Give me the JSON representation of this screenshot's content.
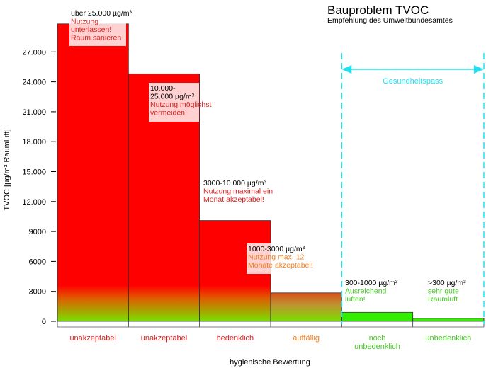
{
  "chart_data": {
    "type": "bar",
    "title": "Bauproblem TVOC",
    "subtitle": "Empfehlung des Umweltbundesamtes",
    "ylabel": "TVOC [µg/m³ Raumluft]",
    "xlabel": "hygienische Bewertung",
    "ylim": [
      0,
      30000
    ],
    "yticks": [
      {
        "value": 0,
        "label": "0"
      },
      {
        "value": 3000,
        "label": "3000"
      },
      {
        "value": 6000,
        "label": "6000"
      },
      {
        "value": 9000,
        "label": "9000"
      },
      {
        "value": 12000,
        "label": "12.000"
      },
      {
        "value": 15000,
        "label": "15.000"
      },
      {
        "value": 18000,
        "label": "18.000"
      },
      {
        "value": 21000,
        "label": "21.000"
      },
      {
        "value": 24000,
        "label": "24.000"
      },
      {
        "value": 27000,
        "label": "27.000"
      }
    ],
    "bars": [
      {
        "category": "unakzeptabel",
        "value": 29800,
        "range_label": "über 25.000 µg/m³",
        "note": [
          "Nutzung",
          "unterlassen!",
          "Raum sanieren"
        ],
        "color": "#ff0000",
        "label_color": "#e02020"
      },
      {
        "category": "unakzeptabel",
        "value": 24800,
        "range_label": [
          "10.000-",
          "25.000 µg/m³"
        ],
        "note": [
          "Nutzung möglichst",
          "vermeiden!"
        ],
        "color": "#ff0000",
        "label_color": "#e02020"
      },
      {
        "category": "bedenklich",
        "value": 10100,
        "range_label": "3000-10.000 µg/m³",
        "note": [
          "Nutzung maximal ein",
          "Monat akzeptabel!"
        ],
        "color": "#ff0000",
        "label_color": "#e02020"
      },
      {
        "category": "auffällig",
        "value": 2850,
        "range_label": "1000-3000 µg/m³",
        "note": [
          "Nutzung max. 12",
          "Monate akzeptabel!"
        ],
        "color": "#e06a1a",
        "label_color": "#f08020"
      },
      {
        "category": [
          "noch",
          "unbedenklich"
        ],
        "value": 900,
        "range_label": "300-1000 µg/m³",
        "note": [
          "Ausreichend",
          "lüften!"
        ],
        "color": "#33ee00",
        "label_color": "#44cc22"
      },
      {
        "category": "unbedenklich",
        "value": 300,
        "range_label": ">300 µg/m³",
        "note": [
          "sehr gute",
          "Raumluft"
        ],
        "color": "#33ee00",
        "label_color": "#44cc22"
      }
    ],
    "annotation": {
      "label": "Gesundheitspass",
      "color": "#22e0f0"
    },
    "colors": {
      "red": "#ff0000",
      "orange": "#e06a1a",
      "green": "#33ee00",
      "cyan": "#22e0f0",
      "axis_label_red": "#e02020"
    }
  }
}
